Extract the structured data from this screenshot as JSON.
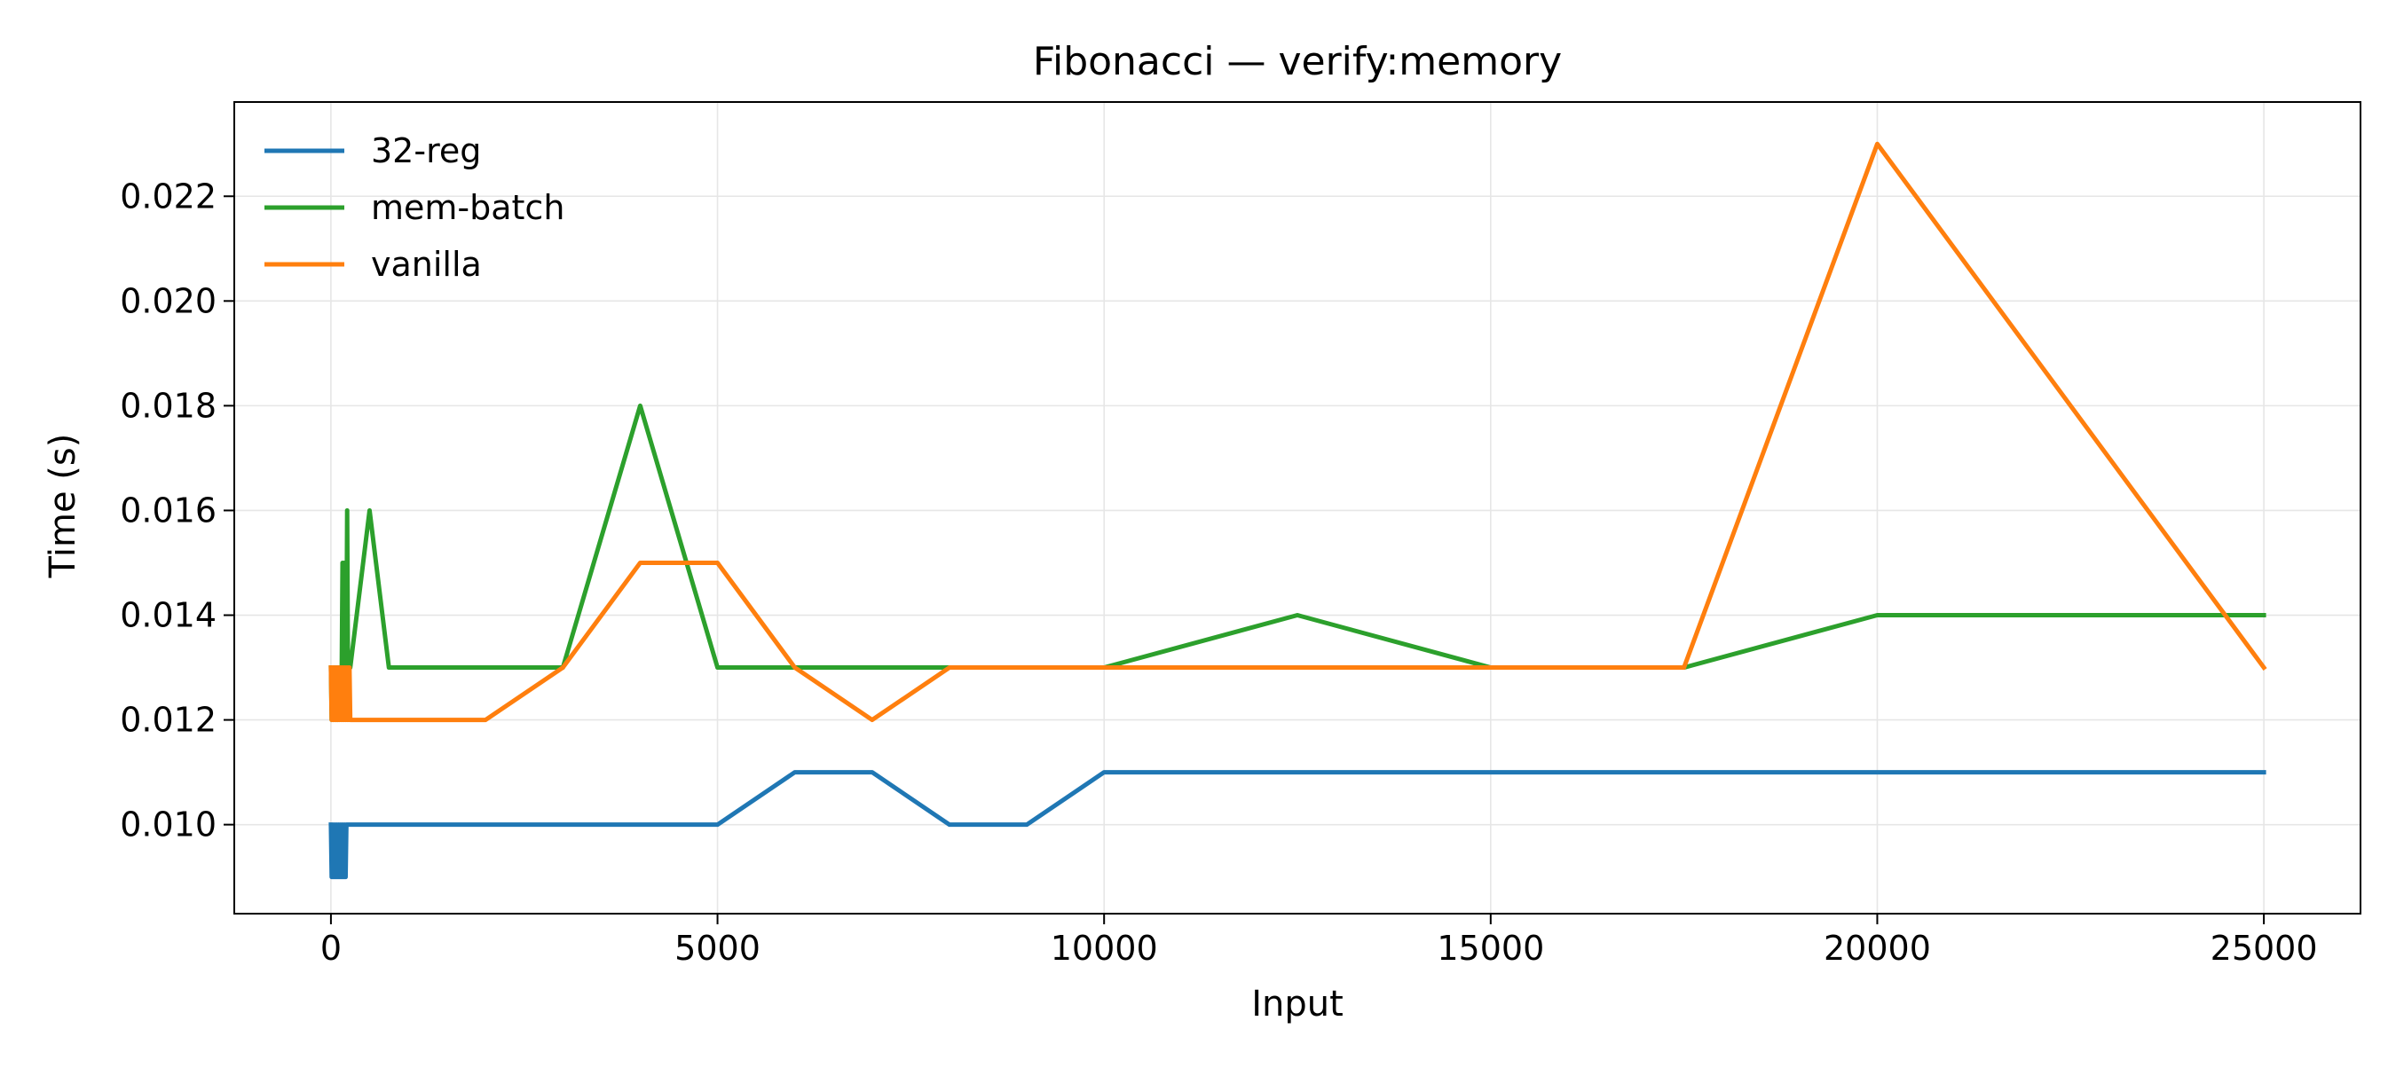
{
  "chart_data": {
    "type": "line",
    "title": "Fibonacci — verify:memory",
    "xlabel": "Input",
    "ylabel": "Time (s)",
    "xlim": [
      -1250,
      26250
    ],
    "ylim": [
      0.0083,
      0.0238
    ],
    "x_ticks": [
      0,
      5000,
      10000,
      15000,
      20000,
      25000
    ],
    "x_tick_labels": [
      "0",
      "5000",
      "10000",
      "15000",
      "20000",
      "25000"
    ],
    "y_ticks": [
      0.01,
      0.012,
      0.014,
      0.016,
      0.018,
      0.02,
      0.022
    ],
    "y_tick_labels": [
      "0.010",
      "0.012",
      "0.014",
      "0.016",
      "0.018",
      "0.020",
      "0.022"
    ],
    "grid": true,
    "legend_position": "top-left",
    "series": [
      {
        "name": "32-reg",
        "color": "#1f77b4",
        "x": [
          0,
          10,
          20,
          30,
          40,
          50,
          60,
          70,
          80,
          90,
          100,
          110,
          120,
          130,
          140,
          150,
          160,
          170,
          180,
          190,
          200,
          500,
          750,
          1000,
          2000,
          3000,
          4000,
          5000,
          6000,
          7000,
          8000,
          9000,
          10000,
          12500,
          15000,
          17500,
          20000,
          25000
        ],
        "y": [
          0.01,
          0.009,
          0.01,
          0.009,
          0.01,
          0.009,
          0.01,
          0.009,
          0.01,
          0.009,
          0.01,
          0.009,
          0.01,
          0.009,
          0.01,
          0.009,
          0.01,
          0.009,
          0.01,
          0.009,
          0.01,
          0.01,
          0.01,
          0.01,
          0.01,
          0.01,
          0.01,
          0.01,
          0.011,
          0.011,
          0.01,
          0.01,
          0.011,
          0.011,
          0.011,
          0.011,
          0.011,
          0.011
        ]
      },
      {
        "name": "mem-batch",
        "color": "#2ca02c",
        "x": [
          0,
          10,
          20,
          30,
          40,
          50,
          60,
          70,
          80,
          90,
          100,
          110,
          120,
          130,
          140,
          150,
          160,
          170,
          180,
          190,
          200,
          210,
          220,
          230,
          240,
          250,
          500,
          750,
          1000,
          2000,
          3000,
          4000,
          5000,
          6000,
          7000,
          8000,
          9000,
          10000,
          12500,
          15000,
          17500,
          20000,
          25000
        ],
        "y": [
          0.013,
          0.012,
          0.013,
          0.012,
          0.013,
          0.012,
          0.013,
          0.012,
          0.013,
          0.012,
          0.013,
          0.013,
          0.013,
          0.013,
          0.013,
          0.015,
          0.013,
          0.015,
          0.013,
          0.015,
          0.013,
          0.016,
          0.013,
          0.013,
          0.013,
          0.013,
          0.016,
          0.013,
          0.013,
          0.013,
          0.013,
          0.018,
          0.013,
          0.013,
          0.013,
          0.013,
          0.013,
          0.013,
          0.014,
          0.013,
          0.013,
          0.014,
          0.014
        ]
      },
      {
        "name": "vanilla",
        "color": "#ff7f0e",
        "x": [
          0,
          10,
          20,
          30,
          40,
          50,
          60,
          70,
          80,
          90,
          100,
          110,
          120,
          130,
          140,
          150,
          160,
          170,
          180,
          190,
          200,
          210,
          220,
          230,
          240,
          250,
          300,
          500,
          750,
          1000,
          2000,
          3000,
          4000,
          5000,
          6000,
          7000,
          8000,
          9000,
          10000,
          12500,
          15000,
          17500,
          20000,
          25000
        ],
        "y": [
          0.013,
          0.012,
          0.013,
          0.012,
          0.013,
          0.012,
          0.013,
          0.012,
          0.013,
          0.012,
          0.013,
          0.012,
          0.013,
          0.012,
          0.013,
          0.012,
          0.013,
          0.012,
          0.013,
          0.012,
          0.013,
          0.012,
          0.013,
          0.012,
          0.013,
          0.012,
          0.012,
          0.012,
          0.012,
          0.012,
          0.012,
          0.013,
          0.015,
          0.015,
          0.013,
          0.012,
          0.013,
          0.013,
          0.013,
          0.013,
          0.013,
          0.013,
          0.023,
          0.013
        ]
      }
    ]
  }
}
